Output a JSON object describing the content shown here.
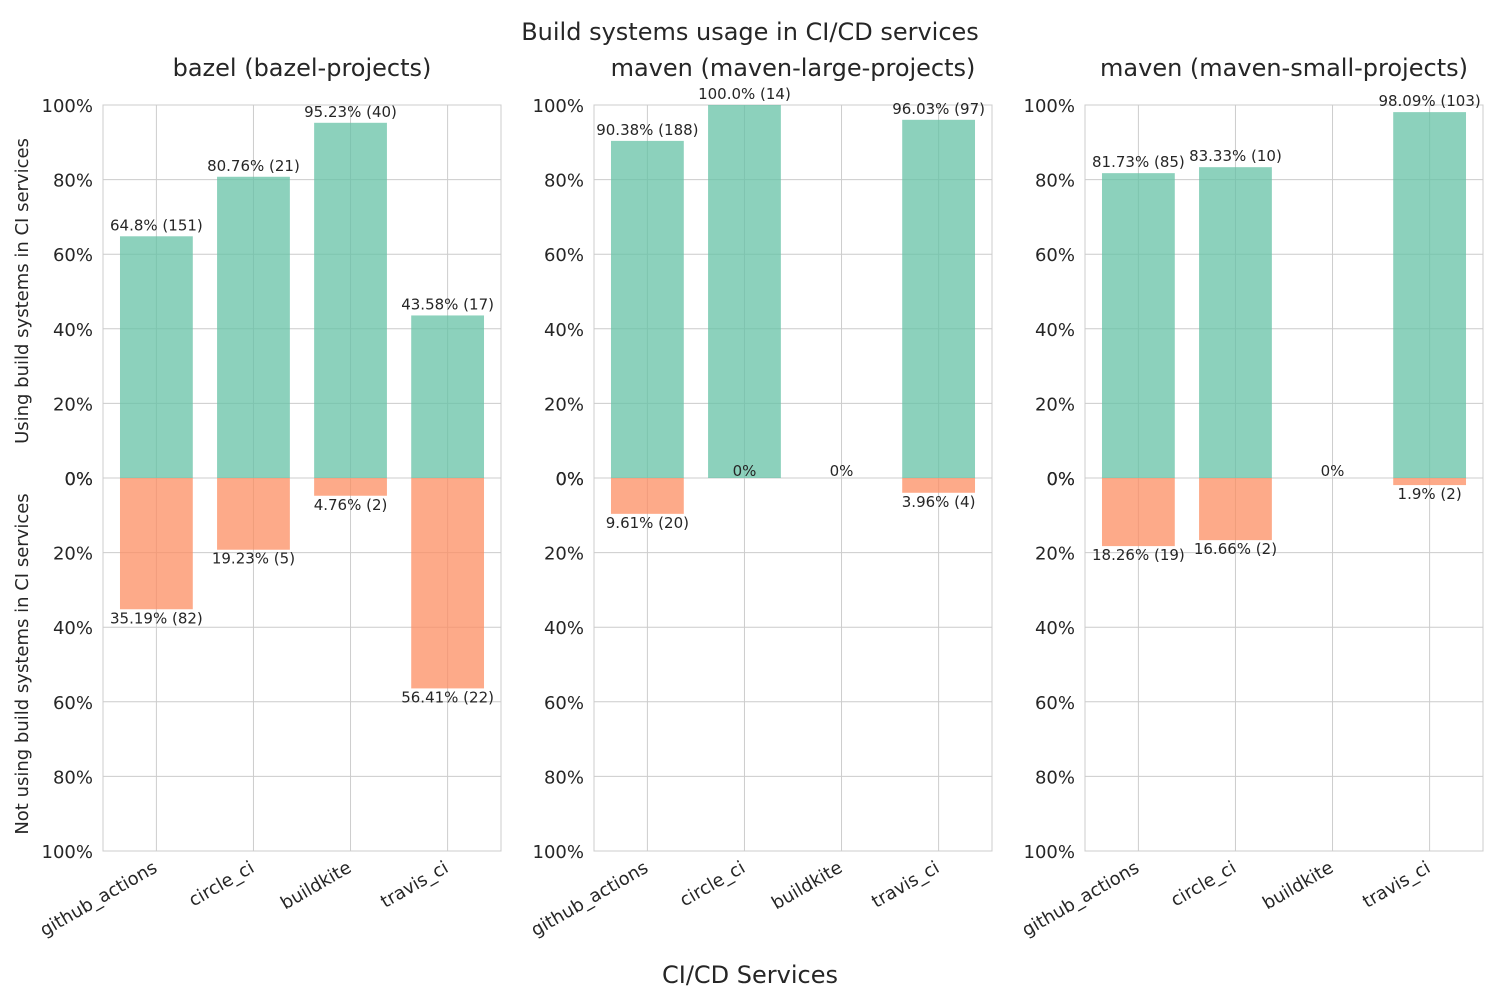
{
  "figure": {
    "suptitle": "Build systems usage in CI/CD services",
    "xlabel": "CI/CD Services"
  },
  "colors": {
    "using": "#66c2a5",
    "not_using": "#fc8d62",
    "grid": "#cccccc",
    "text": "#262626"
  },
  "chart_data": [
    {
      "type": "bar",
      "title": "bazel (bazel-projects)",
      "categories": [
        "github_actions",
        "circle_ci",
        "buildkite",
        "travis_ci"
      ],
      "ylabel_top": "Using build systems in CI services",
      "ylabel_bottom": "Not using build systems in CI services",
      "ylim": [
        -100,
        100
      ],
      "yticks": [
        "100%",
        "80%",
        "60%",
        "40%",
        "20%",
        "0%",
        "0%",
        "20%",
        "40%",
        "60%",
        "80%",
        "100%"
      ],
      "grid": true,
      "series": [
        {
          "values": [
            64.8,
            80.76,
            95.23,
            43.58
          ],
          "labels": [
            "64.8% (151)",
            "80.76% (21)",
            "95.23% (40)",
            "43.58% (17)"
          ]
        },
        {
          "values": [
            35.19,
            19.23,
            4.76,
            56.41
          ],
          "labels": [
            "35.19% (82)",
            "19.23% (5)",
            "4.76% (2)",
            "56.41% (22)"
          ]
        }
      ]
    },
    {
      "type": "bar",
      "title": "maven (maven-large-projects)",
      "categories": [
        "github_actions",
        "circle_ci",
        "buildkite",
        "travis_ci"
      ],
      "ylim": [
        -100,
        100
      ],
      "yticks": [
        "100%",
        "80%",
        "60%",
        "40%",
        "20%",
        "0%",
        "0%",
        "20%",
        "40%",
        "60%",
        "80%",
        "100%"
      ],
      "grid": true,
      "series": [
        {
          "values": [
            90.38,
            100.0,
            0,
            96.03
          ],
          "labels": [
            "90.38% (188)",
            "100.0% (14)",
            "0%",
            "96.03% (97)"
          ]
        },
        {
          "values": [
            9.61,
            0,
            0,
            3.96
          ],
          "labels": [
            "9.61% (20)",
            "0%",
            "",
            "3.96% (4)"
          ]
        }
      ]
    },
    {
      "type": "bar",
      "title": "maven (maven-small-projects)",
      "categories": [
        "github_actions",
        "circle_ci",
        "buildkite",
        "travis_ci"
      ],
      "ylim": [
        -100,
        100
      ],
      "yticks": [
        "100%",
        "80%",
        "60%",
        "40%",
        "20%",
        "0%",
        "0%",
        "20%",
        "40%",
        "60%",
        "80%",
        "100%"
      ],
      "grid": true,
      "series": [
        {
          "values": [
            81.73,
            83.33,
            0,
            98.09
          ],
          "labels": [
            "81.73% (85)",
            "83.33% (10)",
            "0%",
            "98.09% (103)"
          ]
        },
        {
          "values": [
            18.26,
            16.66,
            0,
            1.9
          ],
          "labels": [
            "18.26% (19)",
            "16.66% (2)",
            "",
            "1.9% (2)"
          ]
        }
      ]
    }
  ]
}
